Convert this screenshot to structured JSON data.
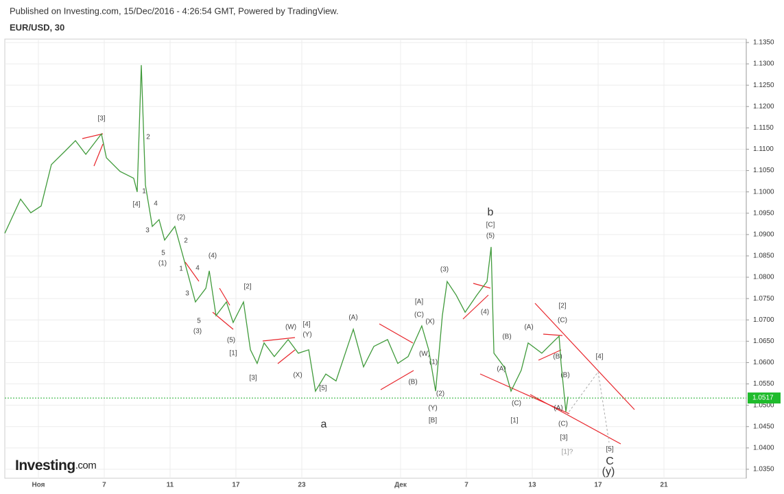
{
  "chart_data": {
    "type": "line",
    "header": "Published on Investing.com, 15/Dec/2016 - 4:26:54 GMT, Powered by TradingView.",
    "title": "EUR/USD, 30",
    "logo": "Investing",
    "logo_suffix": ".com",
    "color": "#3f9a3a",
    "x": [
      -2.04,
      -1.08,
      -0.46,
      0.17,
      0.79,
      1.63,
      2.25,
      2.88,
      3.83,
      4.13,
      4.96,
      5.79,
      6.0,
      6.25,
      6.5,
      6.92,
      7.33,
      7.67,
      8.29,
      8.92,
      9.54,
      10.17,
      10.38,
      10.79,
      11.42,
      11.83,
      12.46,
      12.88,
      13.29,
      13.71,
      14.33,
      15.17,
      15.79,
      16.42,
      16.83,
      17.46,
      18.08,
      19.13,
      19.75,
      20.38,
      21.21,
      21.83,
      22.46,
      23.29,
      23.71,
      24.13,
      24.54,
      24.83,
      25.38,
      25.92,
      26.63,
      27.25,
      27.5,
      27.67,
      28.29,
      28.71,
      29.33,
      29.75,
      30.58,
      31.21,
      31.63,
      31.75,
      32.04,
      32.17
    ],
    "values": [
      1.0903,
      1.0983,
      1.0951,
      1.0967,
      1.1064,
      1.1096,
      1.112,
      1.1088,
      1.1136,
      1.108,
      1.1048,
      1.1032,
      1.1,
      1.1297,
      1.1016,
      1.0919,
      1.0935,
      1.0887,
      1.0919,
      1.0831,
      1.0742,
      1.0774,
      1.0815,
      1.071,
      1.0742,
      1.0694,
      1.0742,
      1.063,
      1.0598,
      1.0646,
      1.0614,
      1.0654,
      1.0622,
      1.063,
      1.0533,
      1.0573,
      1.0557,
      1.0678,
      1.059,
      1.0638,
      1.0654,
      1.0598,
      1.0614,
      1.0686,
      1.063,
      1.0533,
      1.071,
      1.079,
      1.0758,
      1.0718,
      1.0758,
      1.079,
      1.0871,
      1.0622,
      1.059,
      1.0533,
      1.0582,
      1.0646,
      1.0622,
      1.0646,
      1.0662,
      1.0598,
      1.0485,
      1.052
    ],
    "xlim": [
      -2.04,
      43
    ],
    "xticks": [
      {
        "value": 0,
        "label": "Ноя"
      },
      {
        "value": 4,
        "label": "7"
      },
      {
        "value": 8,
        "label": "11"
      },
      {
        "value": 12,
        "label": "17"
      },
      {
        "value": 16,
        "label": "23"
      },
      {
        "value": 22,
        "label": "Дек"
      },
      {
        "value": 26,
        "label": "7"
      },
      {
        "value": 30,
        "label": "13"
      },
      {
        "value": 34,
        "label": "17"
      },
      {
        "value": 38,
        "label": "21"
      }
    ],
    "ylim": [
      1.0329,
      1.1358
    ],
    "yticks": [
      {
        "value": 1.035,
        "label": "1.0350"
      },
      {
        "value": 1.04,
        "label": "1.0400"
      },
      {
        "value": 1.045,
        "label": "1.0450"
      },
      {
        "value": 1.05,
        "label": "1.0500"
      },
      {
        "value": 1.055,
        "label": "1.0550"
      },
      {
        "value": 1.06,
        "label": "1.0600"
      },
      {
        "value": 1.065,
        "label": "1.0650"
      },
      {
        "value": 1.07,
        "label": "1.0700"
      },
      {
        "value": 1.075,
        "label": "1.0750"
      },
      {
        "value": 1.08,
        "label": "1.0800"
      },
      {
        "value": 1.085,
        "label": "1.0850"
      },
      {
        "value": 1.09,
        "label": "1.0900"
      },
      {
        "value": 1.095,
        "label": "1.0950"
      },
      {
        "value": 1.1,
        "label": "1.1000"
      },
      {
        "value": 1.105,
        "label": "1.1050"
      },
      {
        "value": 1.11,
        "label": "1.1100"
      },
      {
        "value": 1.115,
        "label": "1.1150"
      },
      {
        "value": 1.12,
        "label": "1.1200"
      },
      {
        "value": 1.125,
        "label": "1.1250"
      },
      {
        "value": 1.13,
        "label": "1.1300"
      },
      {
        "value": 1.135,
        "label": "1.1350"
      }
    ],
    "grid": true,
    "last_price": 1.0517,
    "annotations": [
      "[3]",
      "2",
      "1",
      "[4]",
      "4",
      "3",
      "(2)",
      "2",
      "5",
      "(1)",
      "1",
      "4",
      "(4)",
      "3",
      "5",
      "(3)",
      "[2]",
      "(5)",
      "[1]",
      "[3]",
      "(W)",
      "[4]",
      "(Y)",
      "(X)",
      "[5]",
      "a",
      "(A)",
      "(B)",
      "[A]",
      "(C)",
      "(X)",
      "(W)",
      "(1)",
      "(2)",
      "(Y)",
      "[B]",
      "(3)",
      "(4)",
      "b",
      "[C]",
      "(5)",
      "(B)",
      "(A)",
      "(C)",
      "[1]",
      "(A)",
      "[2]",
      "(C)",
      "(B)",
      "(B)",
      "(A)",
      "(C)",
      "[3]",
      "[1]?",
      "[4]",
      "[5]",
      "C",
      "(y)"
    ]
  }
}
